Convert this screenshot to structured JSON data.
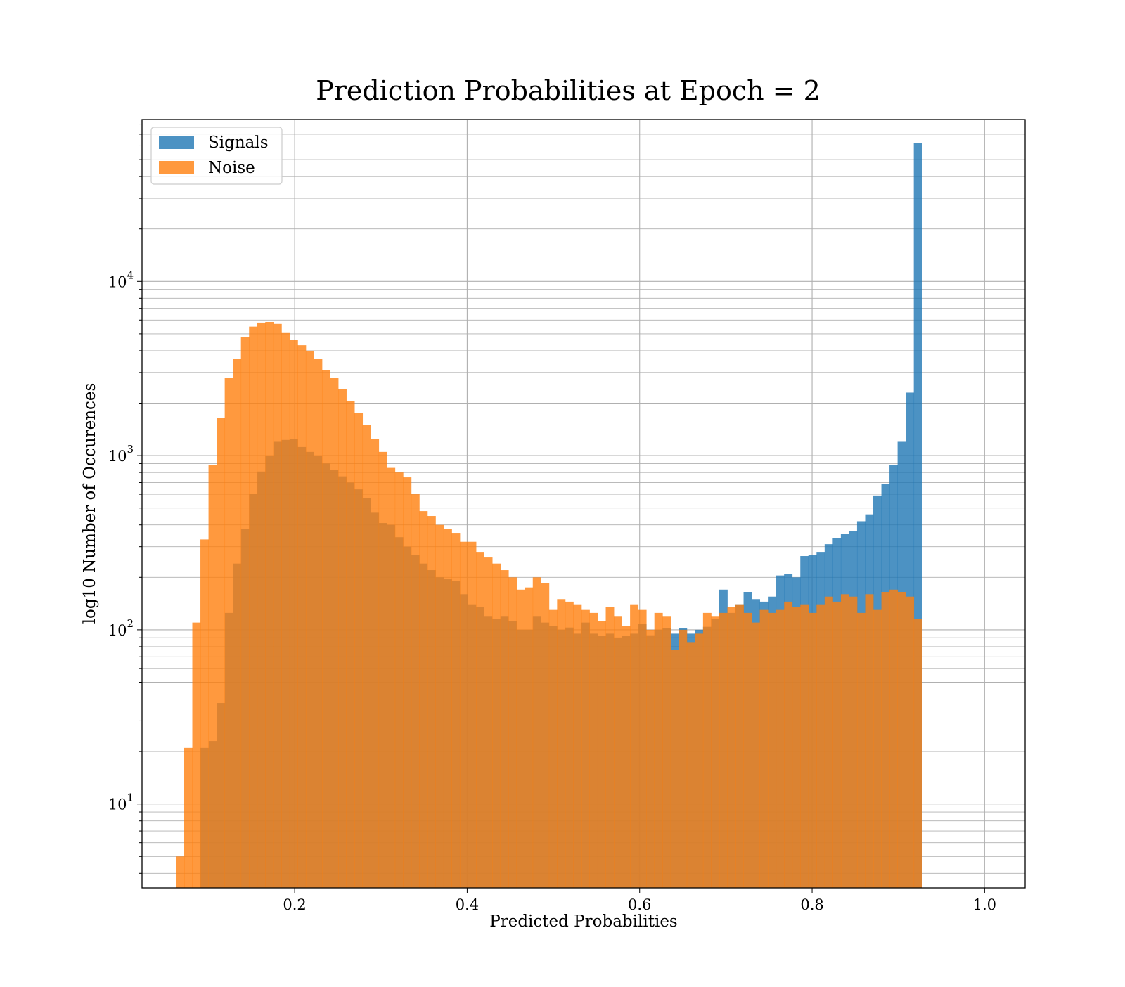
{
  "chart_data": {
    "type": "bar",
    "title": "Prediction Probabilities at Epoch = 2",
    "xlabel": "Predicted Probabilities",
    "ylabel": "log10 Number of Occurences",
    "yscale": "log",
    "xlim": [
      0.023,
      1.047
    ],
    "ylim": [
      3.3,
      85000
    ],
    "grid": true,
    "legend_position": "top-left",
    "x_ticks": [
      0.2,
      0.4,
      0.6,
      0.8,
      1.0
    ],
    "x_tick_labels": [
      "0.2",
      "0.4",
      "0.6",
      "0.8",
      "1.0"
    ],
    "y_ticks": [
      10,
      100,
      1000,
      10000
    ],
    "y_tick_labels": [
      {
        "base": "10",
        "exp": "1"
      },
      {
        "base": "10",
        "exp": "2"
      },
      {
        "base": "10",
        "exp": "3"
      },
      {
        "base": "10",
        "exp": "4"
      }
    ],
    "bins": {
      "start": 0.0625,
      "width": 0.0094
    },
    "series": [
      {
        "name": "Signals",
        "color": "#1f77b4",
        "values": [
          0,
          0,
          0,
          21,
          23,
          38,
          125,
          240,
          380,
          600,
          810,
          1000,
          1200,
          1230,
          1240,
          1120,
          1050,
          1000,
          900,
          830,
          760,
          700,
          640,
          570,
          470,
          410,
          400,
          340,
          300,
          270,
          240,
          220,
          200,
          195,
          190,
          160,
          140,
          135,
          120,
          115,
          120,
          112,
          100,
          100,
          120,
          110,
          105,
          100,
          103,
          95,
          110,
          95,
          92,
          95,
          90,
          92,
          95,
          108,
          93,
          100,
          102,
          95,
          102,
          95,
          100,
          104,
          115,
          170,
          125,
          140,
          165,
          150,
          145,
          155,
          205,
          210,
          200,
          265,
          270,
          280,
          310,
          335,
          355,
          370,
          420,
          460,
          590,
          690,
          880,
          1200,
          2300,
          62000
        ]
      },
      {
        "name": "Noise",
        "color": "#ff7f0e",
        "values": [
          5,
          21,
          110,
          330,
          880,
          1650,
          2800,
          3600,
          4800,
          5500,
          5800,
          5850,
          5700,
          5100,
          4600,
          4300,
          4000,
          3600,
          3100,
          2800,
          2400,
          2050,
          1750,
          1500,
          1250,
          1050,
          850,
          800,
          750,
          600,
          480,
          450,
          400,
          380,
          360,
          320,
          320,
          280,
          260,
          240,
          220,
          200,
          170,
          175,
          200,
          185,
          130,
          150,
          145,
          140,
          130,
          125,
          112,
          135,
          120,
          105,
          140,
          130,
          100,
          125,
          120,
          77,
          100,
          85,
          95,
          125,
          120,
          125,
          135,
          140,
          125,
          110,
          130,
          125,
          130,
          145,
          135,
          140,
          125,
          140,
          155,
          145,
          160,
          155,
          125,
          160,
          130,
          165,
          170,
          165,
          155,
          115
        ]
      }
    ]
  }
}
